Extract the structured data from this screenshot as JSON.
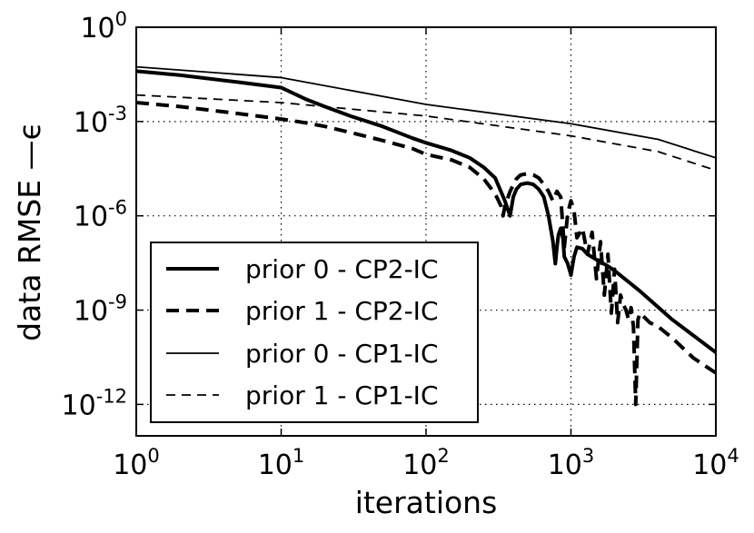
{
  "chart_data": {
    "type": "line",
    "title": "",
    "xlabel": "iterations",
    "ylabel": "data RMSE —ϵ",
    "xscale": "log",
    "yscale": "log",
    "xlim": [
      1,
      10000
    ],
    "ylim": [
      1e-13,
      1
    ],
    "grid": true,
    "legend_position": "lower-left",
    "x_ticks": [
      {
        "value": 1,
        "base": "10",
        "exp": "0"
      },
      {
        "value": 10,
        "base": "10",
        "exp": "1"
      },
      {
        "value": 100,
        "base": "10",
        "exp": "2"
      },
      {
        "value": 1000,
        "base": "10",
        "exp": "3"
      },
      {
        "value": 10000,
        "base": "10",
        "exp": "4"
      }
    ],
    "y_ticks": [
      {
        "value": 1,
        "base": "10",
        "exp": "0"
      },
      {
        "value": 0.001,
        "base": "10",
        "exp": "-3"
      },
      {
        "value": 1e-06,
        "base": "10",
        "exp": "-6"
      },
      {
        "value": 1e-09,
        "base": "10",
        "exp": "-9"
      },
      {
        "value": 1e-12,
        "base": "10",
        "exp": "-12"
      }
    ],
    "series": [
      {
        "name": "prior 0 - CP2-IC",
        "style": "solid-thick",
        "x": [
          1,
          2,
          5,
          10,
          15,
          20,
          30,
          50,
          80,
          100,
          150,
          200,
          250,
          300,
          350,
          380,
          400,
          420,
          450,
          500,
          550,
          600,
          650,
          700,
          750,
          780,
          800,
          820,
          850,
          880,
          900,
          950,
          1000,
          1050,
          1100,
          1200,
          1300,
          1500,
          1800,
          2000,
          3000,
          5000,
          10000
        ],
        "y": [
          0.04,
          0.03,
          0.018,
          0.012,
          0.005,
          0.003,
          0.0015,
          0.0007,
          0.0003,
          0.00021,
          0.00012,
          7e-05,
          3.5e-05,
          1.6e-05,
          3e-06,
          1e-06,
          4e-06,
          7e-06,
          1e-05,
          1.1e-05,
          1e-05,
          7e-06,
          4e-06,
          1e-06,
          1.6e-07,
          3e-08,
          1e-07,
          2.5e-07,
          4e-07,
          2e-07,
          5e-08,
          3e-08,
          1.3e-08,
          5e-08,
          1e-07,
          9e-08,
          6e-08,
          4e-08,
          2.5e-08,
          1.8e-08,
          4e-09,
          5e-10,
          4.5e-11
        ]
      },
      {
        "name": "prior 1 - CP2-IC",
        "style": "dashed-thick",
        "x": [
          1,
          2,
          5,
          10,
          15,
          20,
          30,
          50,
          80,
          100,
          150,
          200,
          250,
          300,
          330,
          340,
          350,
          380,
          420,
          450,
          500,
          550,
          600,
          650,
          700,
          750,
          800,
          850,
          900,
          950,
          1000,
          1050,
          1100,
          1200,
          1300,
          1400,
          1500,
          1600,
          1700,
          1800,
          1900,
          2000,
          2100,
          2200,
          2300,
          2400,
          2500,
          2600,
          2700,
          2800,
          2900,
          3000,
          3200,
          3500,
          4000,
          5000,
          7000,
          10000
        ],
        "y": [
          0.004,
          0.003,
          0.0018,
          0.0012,
          0.0009,
          0.0007,
          0.00045,
          0.00025,
          0.00014,
          9e-05,
          6e-05,
          3.5e-05,
          1.5e-05,
          5e-06,
          2e-06,
          1e-06,
          2e-06,
          6e-06,
          1.5e-05,
          2e-05,
          2.2e-05,
          2e-05,
          1.6e-05,
          1e-05,
          6e-06,
          3e-06,
          6e-06,
          4e-06,
          1e-07,
          1.2e-06,
          3e-06,
          1.5e-06,
          2e-07,
          4e-07,
          6e-08,
          3e-07,
          1e-08,
          1.5e-07,
          3e-09,
          6e-08,
          8e-10,
          2e-08,
          4e-10,
          3e-09,
          1.5e-09,
          1e-09,
          5e-10,
          1.2e-09,
          3e-10,
          1e-12,
          5e-10,
          8e-10,
          6e-10,
          4e-10,
          3e-10,
          1.3e-10,
          3e-11,
          1e-11
        ]
      },
      {
        "name": "prior 0 - CP1-IC",
        "style": "solid-thin",
        "x": [
          1,
          10,
          100,
          1000,
          4000,
          10000
        ],
        "y": [
          0.055,
          0.025,
          0.0035,
          0.00085,
          0.00027,
          7e-05
        ]
      },
      {
        "name": "prior 1 - CP1-IC",
        "style": "dashed-thin",
        "x": [
          1,
          10,
          100,
          1000,
          4000,
          10000
        ],
        "y": [
          0.007,
          0.004,
          0.0015,
          0.00035,
          0.00011,
          2.8e-05
        ]
      }
    ]
  }
}
